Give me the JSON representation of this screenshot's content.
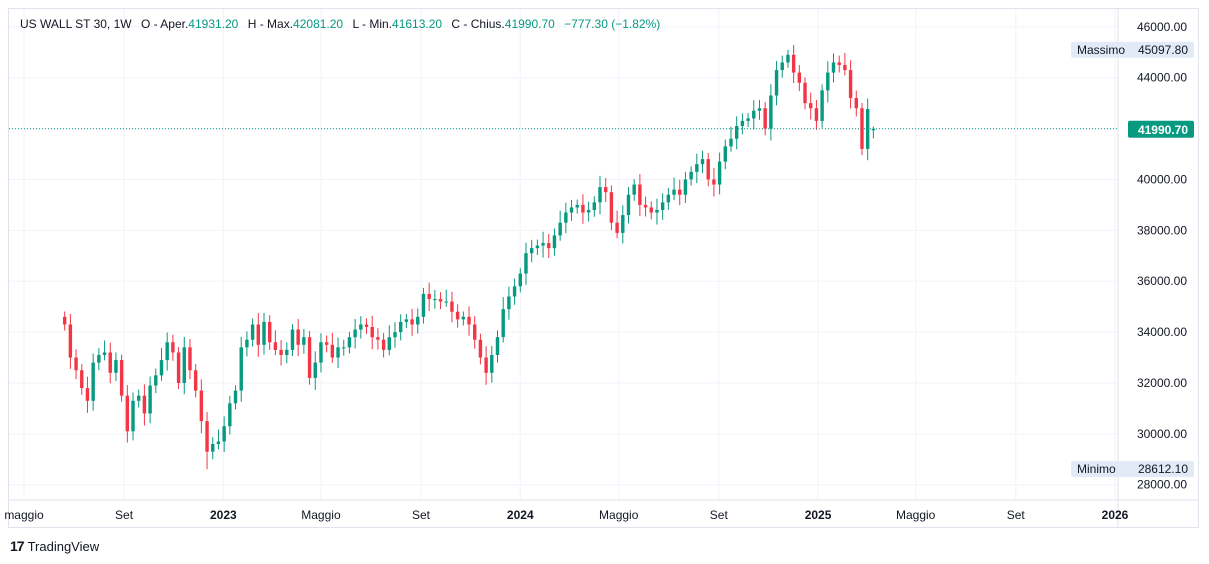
{
  "legend": {
    "symbol": "US WALL ST 30, 1W",
    "open_label": "O - Aper.",
    "open": "41931.20",
    "high_label": "H - Max.",
    "high": "42081.20",
    "low_label": "L - Min.",
    "low": "41613.20",
    "close_label": "C - Chius.",
    "close": "41990.70",
    "change": "−777.30 (−1.82%)"
  },
  "markers": {
    "high_label": "Massimo",
    "high_value": "45097.80",
    "low_label": "Minimo",
    "low_value": "28612.10",
    "last_price": "41990.70"
  },
  "footer": {
    "brand_logo": "17",
    "brand_text": "TradingView"
  },
  "colors": {
    "up": "#089981",
    "down": "#F23645",
    "price_line": "#089981",
    "grid": "#f0f3fa"
  },
  "chart_data": {
    "type": "candlestick",
    "interval": "1W",
    "y_ticks": [
      "46000.00",
      "44000.00",
      "42000.00",
      "40000.00",
      "38000.00",
      "36000.00",
      "34000.00",
      "32000.00",
      "30000.00",
      "28000.00"
    ],
    "ylim": [
      27400,
      46700
    ],
    "x_ticks": [
      {
        "label": "maggio",
        "date": "2022-05-01",
        "bold": false
      },
      {
        "label": "Set",
        "date": "2022-09-01",
        "bold": false
      },
      {
        "label": "2023",
        "date": "2023-01-01",
        "bold": true
      },
      {
        "label": "Maggio",
        "date": "2023-05-01",
        "bold": false
      },
      {
        "label": "Set",
        "date": "2023-09-01",
        "bold": false
      },
      {
        "label": "2024",
        "date": "2024-01-01",
        "bold": true
      },
      {
        "label": "Maggio",
        "date": "2024-05-01",
        "bold": false
      },
      {
        "label": "Set",
        "date": "2024-09-01",
        "bold": false
      },
      {
        "label": "2025",
        "date": "2025-01-01",
        "bold": true
      },
      {
        "label": "Maggio",
        "date": "2025-05-01",
        "bold": false
      },
      {
        "label": "Set",
        "date": "2025-09-01",
        "bold": false
      },
      {
        "label": "2026",
        "date": "2026-01-01",
        "bold": true
      }
    ],
    "grid": true,
    "closes": [
      34300,
      33000,
      32500,
      31800,
      31300,
      32800,
      33100,
      33200,
      32400,
      32900,
      31500,
      30100,
      31300,
      31500,
      30800,
      31900,
      32300,
      32900,
      33600,
      33200,
      32000,
      33400,
      32500,
      31700,
      30500,
      29300,
      29600,
      29700,
      30300,
      31200,
      31700,
      33400,
      33700,
      34300,
      33500,
      34400,
      33600,
      33300,
      33100,
      33300,
      34100,
      33500,
      33800,
      32200,
      32800,
      33600,
      33500,
      33000,
      33400,
      33400,
      33800,
      34100,
      34300,
      34200,
      33800,
      33700,
      33300,
      33800,
      34000,
      34400,
      34500,
      34300,
      34600,
      35500,
      35300,
      35300,
      35200,
      35200,
      34800,
      34500,
      34600,
      34300,
      33700,
      33000,
      32400,
      33100,
      33800,
      34900,
      35400,
      35800,
      36300,
      37100,
      37300,
      37400,
      37500,
      37300,
      37800,
      38300,
      38700,
      38900,
      39000,
      38700,
      38800,
      39100,
      39700,
      39500,
      38300,
      37900,
      38600,
      39400,
      39800,
      39000,
      38900,
      38700,
      38800,
      39100,
      39400,
      39600,
      39400,
      40000,
      40300,
      40600,
      40800,
      40000,
      39800,
      40700,
      41300,
      41600,
      42100,
      42300,
      42400,
      42700,
      42800,
      42000,
      43300,
      44300,
      44600,
      44900,
      44200,
      43800,
      43000,
      42800,
      42300,
      43500,
      44200,
      44600,
      44500,
      44300,
      43200,
      42800,
      41200,
      42768,
      41990.7
    ],
    "open_first": 34600,
    "high": 45097.8,
    "high_index": 127,
    "low": 28612.1,
    "low_index": 25,
    "last": {
      "open": 41931.2,
      "high": 42081.2,
      "low": 41613.2,
      "close": 41990.7
    }
  }
}
